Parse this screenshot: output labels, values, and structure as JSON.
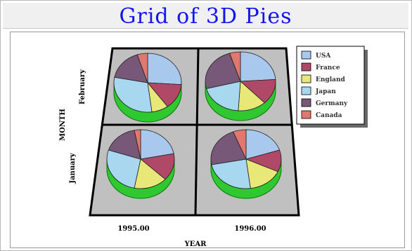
{
  "chart_data": {
    "type": "pie",
    "title": "Grid of 3D Pies",
    "xlabel": "YEAR",
    "ylabel": "MONTH",
    "columns": [
      "1995.00",
      "1996.00"
    ],
    "rows": [
      "January",
      "February"
    ],
    "legend_position": "right",
    "series": [
      {
        "name": "USA",
        "color": "#a8c8ee"
      },
      {
        "name": "France",
        "color": "#b04868"
      },
      {
        "name": "England",
        "color": "#e8e878"
      },
      {
        "name": "Japan",
        "color": "#a8d8f0"
      },
      {
        "name": "Germany",
        "color": "#785878"
      },
      {
        "name": "Canada",
        "color": "#e07870"
      }
    ],
    "pies": [
      {
        "row": "February",
        "col": "1995.00",
        "values": [
          26,
          14,
          8,
          30,
          17,
          5
        ]
      },
      {
        "row": "February",
        "col": "1996.00",
        "values": [
          24,
          14,
          13,
          20,
          24,
          5
        ]
      },
      {
        "row": "January",
        "col": "1995.00",
        "values": [
          22,
          15,
          16,
          27,
          17,
          3
        ]
      },
      {
        "row": "January",
        "col": "1996.00",
        "values": [
          20,
          12,
          16,
          24,
          22,
          6
        ]
      }
    ]
  }
}
